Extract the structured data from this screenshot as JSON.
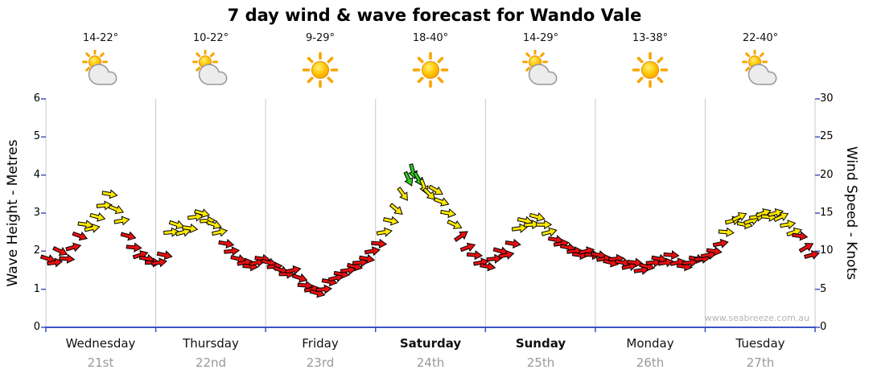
{
  "title": "7 day wind & wave forecast for Wando Vale",
  "watermark": "www.seabreeze.com.au",
  "colors": {
    "red": "#e81010",
    "yellow": "#ffe800",
    "green": "#2ecc1e",
    "axis": "#3e51c1",
    "grid": "#c9c9c9"
  },
  "left_axis": {
    "label": "Wave Height - Metres",
    "ticks": [
      6,
      5,
      4,
      3,
      2,
      1,
      0
    ],
    "max": 6
  },
  "right_axis": {
    "label": "Wind Speed - Knots",
    "ticks": [
      30,
      25,
      20,
      15,
      10,
      5,
      0
    ],
    "max": 30
  },
  "days": [
    {
      "name": "Wednesday",
      "date": "21st",
      "temp": "14-22°",
      "icon": "icon-sun-cloud",
      "bold": false
    },
    {
      "name": "Thursday",
      "date": "22nd",
      "temp": "10-22°",
      "icon": "icon-sun-cloud",
      "bold": false
    },
    {
      "name": "Friday",
      "date": "23rd",
      "temp": "9-29°",
      "icon": "icon-sun",
      "bold": false
    },
    {
      "name": "Saturday",
      "date": "24th",
      "temp": "18-40°",
      "icon": "icon-sun",
      "bold": true
    },
    {
      "name": "Sunday",
      "date": "25th",
      "temp": "14-29°",
      "icon": "icon-sun-cloud",
      "bold": true
    },
    {
      "name": "Monday",
      "date": "26th",
      "temp": "13-38°",
      "icon": "icon-sun",
      "bold": false
    },
    {
      "name": "Tuesday",
      "date": "27th",
      "temp": "22-40°",
      "icon": "icon-sun-cloud",
      "bold": false
    }
  ],
  "chart_data": {
    "type": "scatter",
    "subtype": "wind-arrow-series",
    "title": "7 day wind & wave forecast for Wando Vale",
    "categories": [
      "Wednesday 21st",
      "Thursday 22nd",
      "Friday 23rd",
      "Saturday 24th",
      "Sunday 25th",
      "Monday 26th",
      "Tuesday 27th"
    ],
    "x_unit": "day_fraction (0 = start Wednesday, 7 = end Tuesday)",
    "y_unit": "knots",
    "ylim": [
      0,
      30
    ],
    "wave_height_ylim_metres": [
      0,
      6
    ],
    "grid": "vertical day separators only",
    "color_thresholds_knots": {
      "yellow_min": 12.5,
      "green_min": 19
    },
    "points_format": [
      "day_fraction",
      "wind_speed_knots",
      "arrow_rotation_deg"
    ],
    "points": [
      [
        0.02,
        9,
        18
      ],
      [
        0.08,
        8.5,
        -8
      ],
      [
        0.13,
        10,
        25
      ],
      [
        0.19,
        9,
        5
      ],
      [
        0.25,
        10.5,
        -15
      ],
      [
        0.31,
        12,
        20
      ],
      [
        0.36,
        13.5,
        8
      ],
      [
        0.42,
        13,
        -12
      ],
      [
        0.47,
        14.5,
        15
      ],
      [
        0.53,
        16,
        -5
      ],
      [
        0.58,
        17.5,
        10
      ],
      [
        0.64,
        15.5,
        22
      ],
      [
        0.69,
        14,
        -10
      ],
      [
        0.75,
        12,
        15
      ],
      [
        0.8,
        10.5,
        5
      ],
      [
        0.86,
        9.5,
        -18
      ],
      [
        0.92,
        9,
        10
      ],
      [
        0.97,
        8.5,
        0
      ],
      [
        1.03,
        8.5,
        -10
      ],
      [
        1.08,
        9.5,
        12
      ],
      [
        1.14,
        12.5,
        -5
      ],
      [
        1.19,
        13.5,
        18
      ],
      [
        1.25,
        12.5,
        -15
      ],
      [
        1.31,
        13,
        8
      ],
      [
        1.36,
        14.5,
        -8
      ],
      [
        1.42,
        15,
        15
      ],
      [
        1.47,
        14,
        -3
      ],
      [
        1.53,
        13.5,
        20
      ],
      [
        1.58,
        12.5,
        -12
      ],
      [
        1.64,
        11,
        10
      ],
      [
        1.69,
        10,
        -6
      ],
      [
        1.75,
        9,
        14
      ],
      [
        1.81,
        8.5,
        -10
      ],
      [
        1.86,
        8,
        5
      ],
      [
        1.92,
        8.5,
        -14
      ],
      [
        1.97,
        9,
        8
      ],
      [
        2.03,
        8.5,
        15
      ],
      [
        2.08,
        8,
        -5
      ],
      [
        2.14,
        7.5,
        20
      ],
      [
        2.19,
        7,
        0
      ],
      [
        2.25,
        7.5,
        -12
      ],
      [
        2.31,
        6.5,
        18
      ],
      [
        2.36,
        5.5,
        5
      ],
      [
        2.42,
        5,
        -10
      ],
      [
        2.47,
        4.5,
        15
      ],
      [
        2.53,
        5,
        -5
      ],
      [
        2.58,
        6,
        10
      ],
      [
        2.64,
        6.5,
        -15
      ],
      [
        2.69,
        7,
        8
      ],
      [
        2.75,
        7.5,
        -8
      ],
      [
        2.81,
        8,
        12
      ],
      [
        2.86,
        8.5,
        -5
      ],
      [
        2.92,
        9,
        10
      ],
      [
        2.97,
        10,
        -10
      ],
      [
        3.03,
        11,
        5
      ],
      [
        3.08,
        12.5,
        -10
      ],
      [
        3.14,
        14,
        12
      ],
      [
        3.19,
        15.5,
        40
      ],
      [
        3.25,
        17.5,
        55
      ],
      [
        3.3,
        19.5,
        65
      ],
      [
        3.34,
        20.5,
        75
      ],
      [
        3.39,
        19.5,
        60
      ],
      [
        3.44,
        18.5,
        70
      ],
      [
        3.49,
        17.5,
        45
      ],
      [
        3.55,
        18,
        30
      ],
      [
        3.6,
        16.5,
        20
      ],
      [
        3.66,
        15,
        10
      ],
      [
        3.72,
        13.5,
        25
      ],
      [
        3.78,
        12,
        -35
      ],
      [
        3.84,
        10.5,
        -20
      ],
      [
        3.9,
        9.5,
        5
      ],
      [
        3.96,
        8.5,
        -10
      ],
      [
        4.02,
        8,
        10
      ],
      [
        4.08,
        9,
        -5
      ],
      [
        4.14,
        10,
        15
      ],
      [
        4.19,
        9.5,
        -12
      ],
      [
        4.25,
        11,
        8
      ],
      [
        4.31,
        13,
        -8
      ],
      [
        4.36,
        14,
        12
      ],
      [
        4.42,
        13.5,
        -5
      ],
      [
        4.47,
        14.5,
        15
      ],
      [
        4.53,
        13.5,
        0
      ],
      [
        4.58,
        12.5,
        -15
      ],
      [
        4.64,
        11.5,
        10
      ],
      [
        4.69,
        11,
        -8
      ],
      [
        4.75,
        10.5,
        12
      ],
      [
        4.81,
        10,
        -5
      ],
      [
        4.86,
        9.5,
        8
      ],
      [
        4.92,
        10,
        -12
      ],
      [
        4.97,
        9.5,
        5
      ],
      [
        5.03,
        9.5,
        10
      ],
      [
        5.08,
        9,
        -8
      ],
      [
        5.14,
        8.5,
        14
      ],
      [
        5.19,
        9,
        -5
      ],
      [
        5.25,
        8.5,
        10
      ],
      [
        5.31,
        8,
        -12
      ],
      [
        5.36,
        8.5,
        6
      ],
      [
        5.42,
        7.5,
        -8
      ],
      [
        5.47,
        8,
        12
      ],
      [
        5.53,
        8.5,
        -5
      ],
      [
        5.58,
        9,
        10
      ],
      [
        5.64,
        8.5,
        -10
      ],
      [
        5.69,
        9.5,
        5
      ],
      [
        5.75,
        8.5,
        -12
      ],
      [
        5.81,
        8,
        8
      ],
      [
        5.86,
        8.5,
        -6
      ],
      [
        5.92,
        9,
        10
      ],
      [
        5.97,
        9,
        -5
      ],
      [
        6.03,
        9.5,
        -10
      ],
      [
        6.08,
        10,
        8
      ],
      [
        6.14,
        11,
        -12
      ],
      [
        6.19,
        12.5,
        5
      ],
      [
        6.25,
        14,
        -15
      ],
      [
        6.31,
        14.5,
        -25
      ],
      [
        6.36,
        13.5,
        10
      ],
      [
        6.42,
        14,
        -18
      ],
      [
        6.47,
        14.5,
        -8
      ],
      [
        6.53,
        15,
        -20
      ],
      [
        6.58,
        14.5,
        5
      ],
      [
        6.64,
        15,
        -15
      ],
      [
        6.69,
        14.5,
        -25
      ],
      [
        6.75,
        13.5,
        -10
      ],
      [
        6.81,
        12.5,
        -18
      ],
      [
        6.86,
        12,
        8
      ],
      [
        6.92,
        10.5,
        -30
      ],
      [
        6.97,
        9.5,
        -15
      ]
    ]
  }
}
